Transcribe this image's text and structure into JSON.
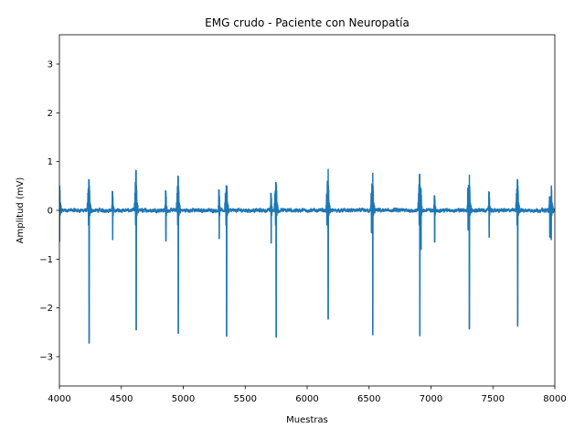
{
  "chart_data": {
    "type": "line",
    "title": "EMG crudo - Paciente con Neuropatía",
    "xlabel": "Muestras",
    "ylabel": "Amplitud (mV)",
    "xlim": [
      4000,
      8000
    ],
    "ylim": [
      -3.6,
      3.6
    ],
    "x_ticks": [
      4000,
      4500,
      5000,
      5500,
      6000,
      6500,
      7000,
      7500,
      8000
    ],
    "y_ticks": [
      -3,
      -2,
      -1,
      0,
      1,
      2,
      3
    ],
    "x_tick_labels": [
      "4000",
      "4500",
      "5000",
      "5500",
      "6000",
      "6500",
      "7000",
      "7500",
      "8000"
    ],
    "y_tick_labels": [
      "−3",
      "−2",
      "−1",
      "0",
      "1",
      "2",
      "3"
    ],
    "grid": false,
    "series": [
      {
        "color": "#1f77b4",
        "baseline_noise_mV": 0.04,
        "large_spikes": [
          {
            "x": 4000,
            "max": 0.33,
            "min": -0.65
          },
          {
            "x": 4240,
            "max": 0.63,
            "min": -2.72
          },
          {
            "x": 4620,
            "max": 0.82,
            "min": -2.45
          },
          {
            "x": 4960,
            "max": 0.7,
            "min": -2.52
          },
          {
            "x": 5350,
            "max": 0.5,
            "min": -2.58
          },
          {
            "x": 5750,
            "max": 0.57,
            "min": -2.6
          },
          {
            "x": 6170,
            "max": 0.85,
            "min": -2.23
          },
          {
            "x": 6530,
            "max": 0.77,
            "min": -2.55
          },
          {
            "x": 6910,
            "max": 0.74,
            "min": -2.57
          },
          {
            "x": 7310,
            "max": 0.73,
            "min": -2.43
          },
          {
            "x": 7700,
            "max": 0.63,
            "min": -2.37
          },
          {
            "x": 7970,
            "max": 0.3,
            "min": -0.57
          }
        ],
        "small_spikes": [
          {
            "x": 4430,
            "max": 0.39,
            "min": -0.6
          },
          {
            "x": 4860,
            "max": 0.4,
            "min": -0.63
          },
          {
            "x": 5290,
            "max": 0.42,
            "min": -0.58
          },
          {
            "x": 5710,
            "max": 0.35,
            "min": -0.67
          },
          {
            "x": 6160,
            "max": 0.33,
            "min": -0.3
          },
          {
            "x": 6520,
            "max": 0.35,
            "min": -0.46
          },
          {
            "x": 6920,
            "max": 0.45,
            "min": -0.8
          },
          {
            "x": 7030,
            "max": 0.3,
            "min": -0.65
          },
          {
            "x": 7300,
            "max": 0.45,
            "min": -0.4
          },
          {
            "x": 7470,
            "max": 0.38,
            "min": -0.55
          },
          {
            "x": 7960,
            "max": 0.28,
            "min": -0.55
          }
        ]
      }
    ]
  }
}
